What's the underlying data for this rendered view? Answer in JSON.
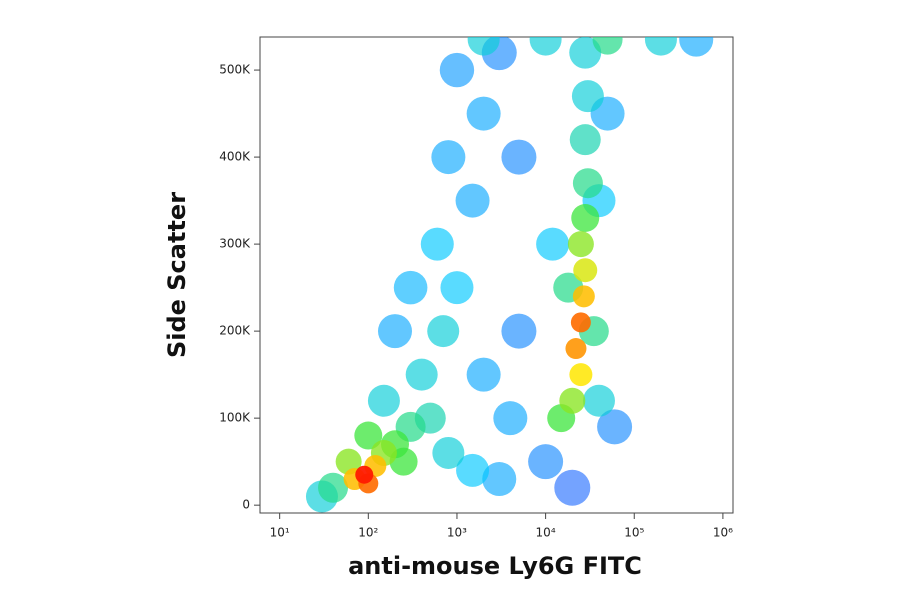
{
  "chart_data": {
    "type": "density",
    "x_label": "anti-mouse Ly6G FITC",
    "y_label": "Side Scatter",
    "xscale": "log",
    "xlim": [
      6,
      1300000
    ],
    "ylim": [
      -9000,
      538000
    ],
    "xticks": [
      {
        "value": 10,
        "label": "10¹"
      },
      {
        "value": 100,
        "label": "10²"
      },
      {
        "value": 1000,
        "label": "10³"
      },
      {
        "value": 10000,
        "label": "10⁴"
      },
      {
        "value": 100000,
        "label": "10⁵"
      },
      {
        "value": 1000000,
        "label": "10⁶"
      }
    ],
    "yticks": [
      0,
      {
        "value": 100000,
        "label": "100K"
      },
      {
        "value": 200000,
        "label": "200K"
      },
      {
        "value": 300000,
        "label": "300K"
      },
      {
        "value": 400000,
        "label": "400K"
      },
      {
        "value": 500000,
        "label": "500K"
      }
    ],
    "colormap": [
      "#1f1fff",
      "#00c8ff",
      "#3ce63c",
      "#ffe600",
      "#ff1a00"
    ],
    "x": [
      90,
      70,
      120,
      100,
      60,
      150,
      200,
      250,
      40,
      300,
      500,
      800,
      1500,
      3000,
      400,
      700,
      1000,
      600,
      1500,
      800,
      2000,
      1000,
      3000,
      5000,
      200,
      300,
      150,
      100,
      30,
      2000,
      5000,
      4000,
      10000,
      20000,
      15000,
      20000,
      25000,
      22000,
      25000,
      27000,
      28000,
      25000,
      28000,
      30000,
      28000,
      30000,
      28000,
      18000,
      35000,
      40000,
      12000,
      40000,
      60000,
      50000,
      2000,
      10000,
      50000,
      200000,
      500000
    ],
    "values": [
      35000,
      30000,
      45000,
      25000,
      50000,
      60000,
      70000,
      50000,
      20000,
      90000,
      100000,
      60000,
      40000,
      30000,
      150000,
      200000,
      250000,
      300000,
      350000,
      400000,
      450000,
      500000,
      520000,
      400000,
      200000,
      250000,
      120000,
      80000,
      10000,
      150000,
      200000,
      100000,
      50000,
      20000,
      100000,
      120000,
      150000,
      180000,
      210000,
      240000,
      270000,
      300000,
      330000,
      370000,
      420000,
      470000,
      520000,
      250000,
      200000,
      120000,
      300000,
      350000,
      90000,
      450000,
      535000,
      535000,
      535000,
      535000,
      535000
    ],
    "density": [
      1,
      0.8,
      0.8,
      0.9,
      0.6,
      0.6,
      0.5,
      0.5,
      0.4,
      0.4,
      0.35,
      0.3,
      0.25,
      0.2,
      0.3,
      0.3,
      0.25,
      0.25,
      0.2,
      0.2,
      0.2,
      0.18,
      0.15,
      0.15,
      0.2,
      0.22,
      0.3,
      0.5,
      0.3,
      0.2,
      0.15,
      0.2,
      0.15,
      0.1,
      0.5,
      0.6,
      0.75,
      0.85,
      0.9,
      0.8,
      0.7,
      0.6,
      0.5,
      0.4,
      0.35,
      0.3,
      0.3,
      0.4,
      0.4,
      0.3,
      0.25,
      0.25,
      0.15,
      0.2,
      0.3,
      0.3,
      0.4,
      0.3,
      0.2
    ]
  }
}
